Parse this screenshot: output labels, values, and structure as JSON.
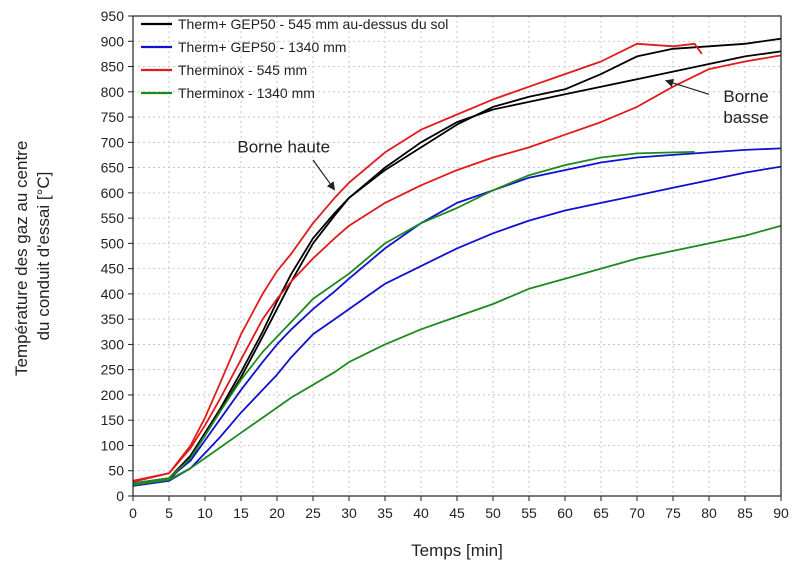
{
  "chart_data": {
    "type": "line",
    "xlabel": "Temps [min]",
    "ylabel_lines": [
      "Température des gaz au centre",
      "du conduit d'essai [°C]"
    ],
    "xlim": [
      0,
      90
    ],
    "ylim": [
      0,
      950
    ],
    "x_ticks": [
      0,
      5,
      10,
      15,
      20,
      25,
      30,
      35,
      40,
      45,
      50,
      55,
      60,
      65,
      70,
      75,
      80,
      85,
      90
    ],
    "y_ticks": [
      0,
      50,
      100,
      150,
      200,
      250,
      300,
      350,
      400,
      450,
      500,
      550,
      600,
      650,
      700,
      750,
      800,
      850,
      900,
      950
    ],
    "grid": true,
    "legend_position": "top-left",
    "legend": [
      {
        "label": "Therm+ GEP50 - 545 mm au-dessus du sol",
        "color": "#000000"
      },
      {
        "label": "Therm+ GEP50 - 1340 mm",
        "color": "#1010d0"
      },
      {
        "label": "Therminox - 545 mm",
        "color": "#e01b1b"
      },
      {
        "label": "Therminox - 1340 mm",
        "color": "#1e8a1e"
      }
    ],
    "series": [
      {
        "legend_index": 0,
        "color": "#000000",
        "x": [
          0,
          5,
          8,
          10,
          12,
          15,
          18,
          20,
          22,
          25,
          28,
          30,
          35,
          40,
          45,
          50,
          55,
          60,
          65,
          70,
          75,
          80,
          85,
          90
        ],
        "y": [
          25,
          35,
          80,
          125,
          170,
          245,
          325,
          385,
          440,
          510,
          560,
          590,
          645,
          690,
          735,
          770,
          790,
          805,
          835,
          870,
          885,
          890,
          895,
          905
        ]
      },
      {
        "legend_index": 0,
        "color": "#000000",
        "x": [
          0,
          5,
          8,
          10,
          12,
          15,
          18,
          20,
          22,
          25,
          28,
          30,
          35,
          40,
          45,
          50,
          55,
          60,
          65,
          70,
          75,
          80,
          85,
          90
        ],
        "y": [
          22,
          32,
          75,
          120,
          165,
          235,
          315,
          370,
          425,
          500,
          555,
          590,
          650,
          700,
          740,
          765,
          780,
          795,
          810,
          825,
          840,
          855,
          870,
          880
        ]
      },
      {
        "legend_index": 1,
        "color": "#1010d0",
        "x": [
          0,
          5,
          8,
          10,
          12,
          15,
          18,
          20,
          22,
          25,
          28,
          30,
          35,
          40,
          45,
          50,
          55,
          60,
          65,
          70,
          75,
          80,
          85,
          90
        ],
        "y": [
          25,
          35,
          70,
          110,
          150,
          210,
          265,
          300,
          330,
          370,
          405,
          430,
          490,
          540,
          580,
          605,
          630,
          645,
          660,
          670,
          675,
          680,
          685,
          688
        ]
      },
      {
        "legend_index": 1,
        "color": "#1010d0",
        "x": [
          0,
          5,
          8,
          10,
          12,
          15,
          18,
          20,
          22,
          25,
          28,
          30,
          35,
          40,
          45,
          50,
          55,
          60,
          65,
          70,
          75,
          80,
          85,
          90
        ],
        "y": [
          20,
          30,
          55,
          85,
          115,
          165,
          210,
          240,
          275,
          320,
          350,
          370,
          420,
          455,
          490,
          520,
          545,
          565,
          580,
          595,
          610,
          625,
          640,
          652
        ]
      },
      {
        "legend_index": 2,
        "color": "#e01b1b",
        "x": [
          0,
          5,
          8,
          10,
          12,
          15,
          18,
          20,
          22,
          25,
          28,
          30,
          35,
          40,
          45,
          50,
          55,
          60,
          65,
          70,
          75,
          78,
          78.5,
          79
        ],
        "y": [
          30,
          45,
          100,
          155,
          220,
          320,
          400,
          445,
          480,
          540,
          590,
          620,
          680,
          725,
          755,
          785,
          810,
          835,
          860,
          895,
          890,
          895,
          885,
          875
        ]
      },
      {
        "legend_index": 2,
        "color": "#e01b1b",
        "x": [
          0,
          5,
          8,
          10,
          12,
          15,
          18,
          20,
          22,
          25,
          28,
          30,
          35,
          40,
          45,
          50,
          55,
          60,
          65,
          70,
          75,
          80,
          85,
          90
        ],
        "y": [
          28,
          45,
          95,
          140,
          190,
          270,
          350,
          390,
          425,
          470,
          510,
          535,
          580,
          615,
          645,
          670,
          690,
          715,
          740,
          770,
          810,
          845,
          860,
          872
        ]
      },
      {
        "legend_index": 3,
        "color": "#1e8a1e",
        "x": [
          0,
          5,
          8,
          10,
          12,
          15,
          18,
          20,
          22,
          25,
          28,
          30,
          35,
          40,
          45,
          50,
          55,
          60,
          65,
          70,
          75,
          78
        ],
        "y": [
          25,
          35,
          75,
          120,
          165,
          230,
          285,
          315,
          345,
          390,
          420,
          440,
          500,
          540,
          570,
          605,
          635,
          655,
          670,
          678,
          680,
          681
        ]
      },
      {
        "legend_index": 3,
        "color": "#1e8a1e",
        "x": [
          0,
          5,
          8,
          10,
          12,
          15,
          18,
          20,
          22,
          25,
          28,
          30,
          35,
          40,
          45,
          50,
          55,
          60,
          65,
          70,
          75,
          80,
          85,
          90
        ],
        "y": [
          22,
          32,
          55,
          75,
          95,
          125,
          155,
          175,
          195,
          220,
          245,
          265,
          300,
          330,
          355,
          380,
          410,
          430,
          450,
          470,
          485,
          500,
          515,
          535
        ]
      }
    ],
    "annotations": [
      {
        "lines": [
          "Borne haute"
        ],
        "text_at": [
          14.5,
          680
        ],
        "arrow_from": [
          25,
          665
        ],
        "arrow_to": [
          28,
          606
        ]
      },
      {
        "lines": [
          "Borne",
          "basse"
        ],
        "text_at": [
          82,
          780
        ],
        "arrow_from": [
          80,
          795
        ],
        "arrow_to": [
          74,
          822
        ]
      }
    ]
  }
}
